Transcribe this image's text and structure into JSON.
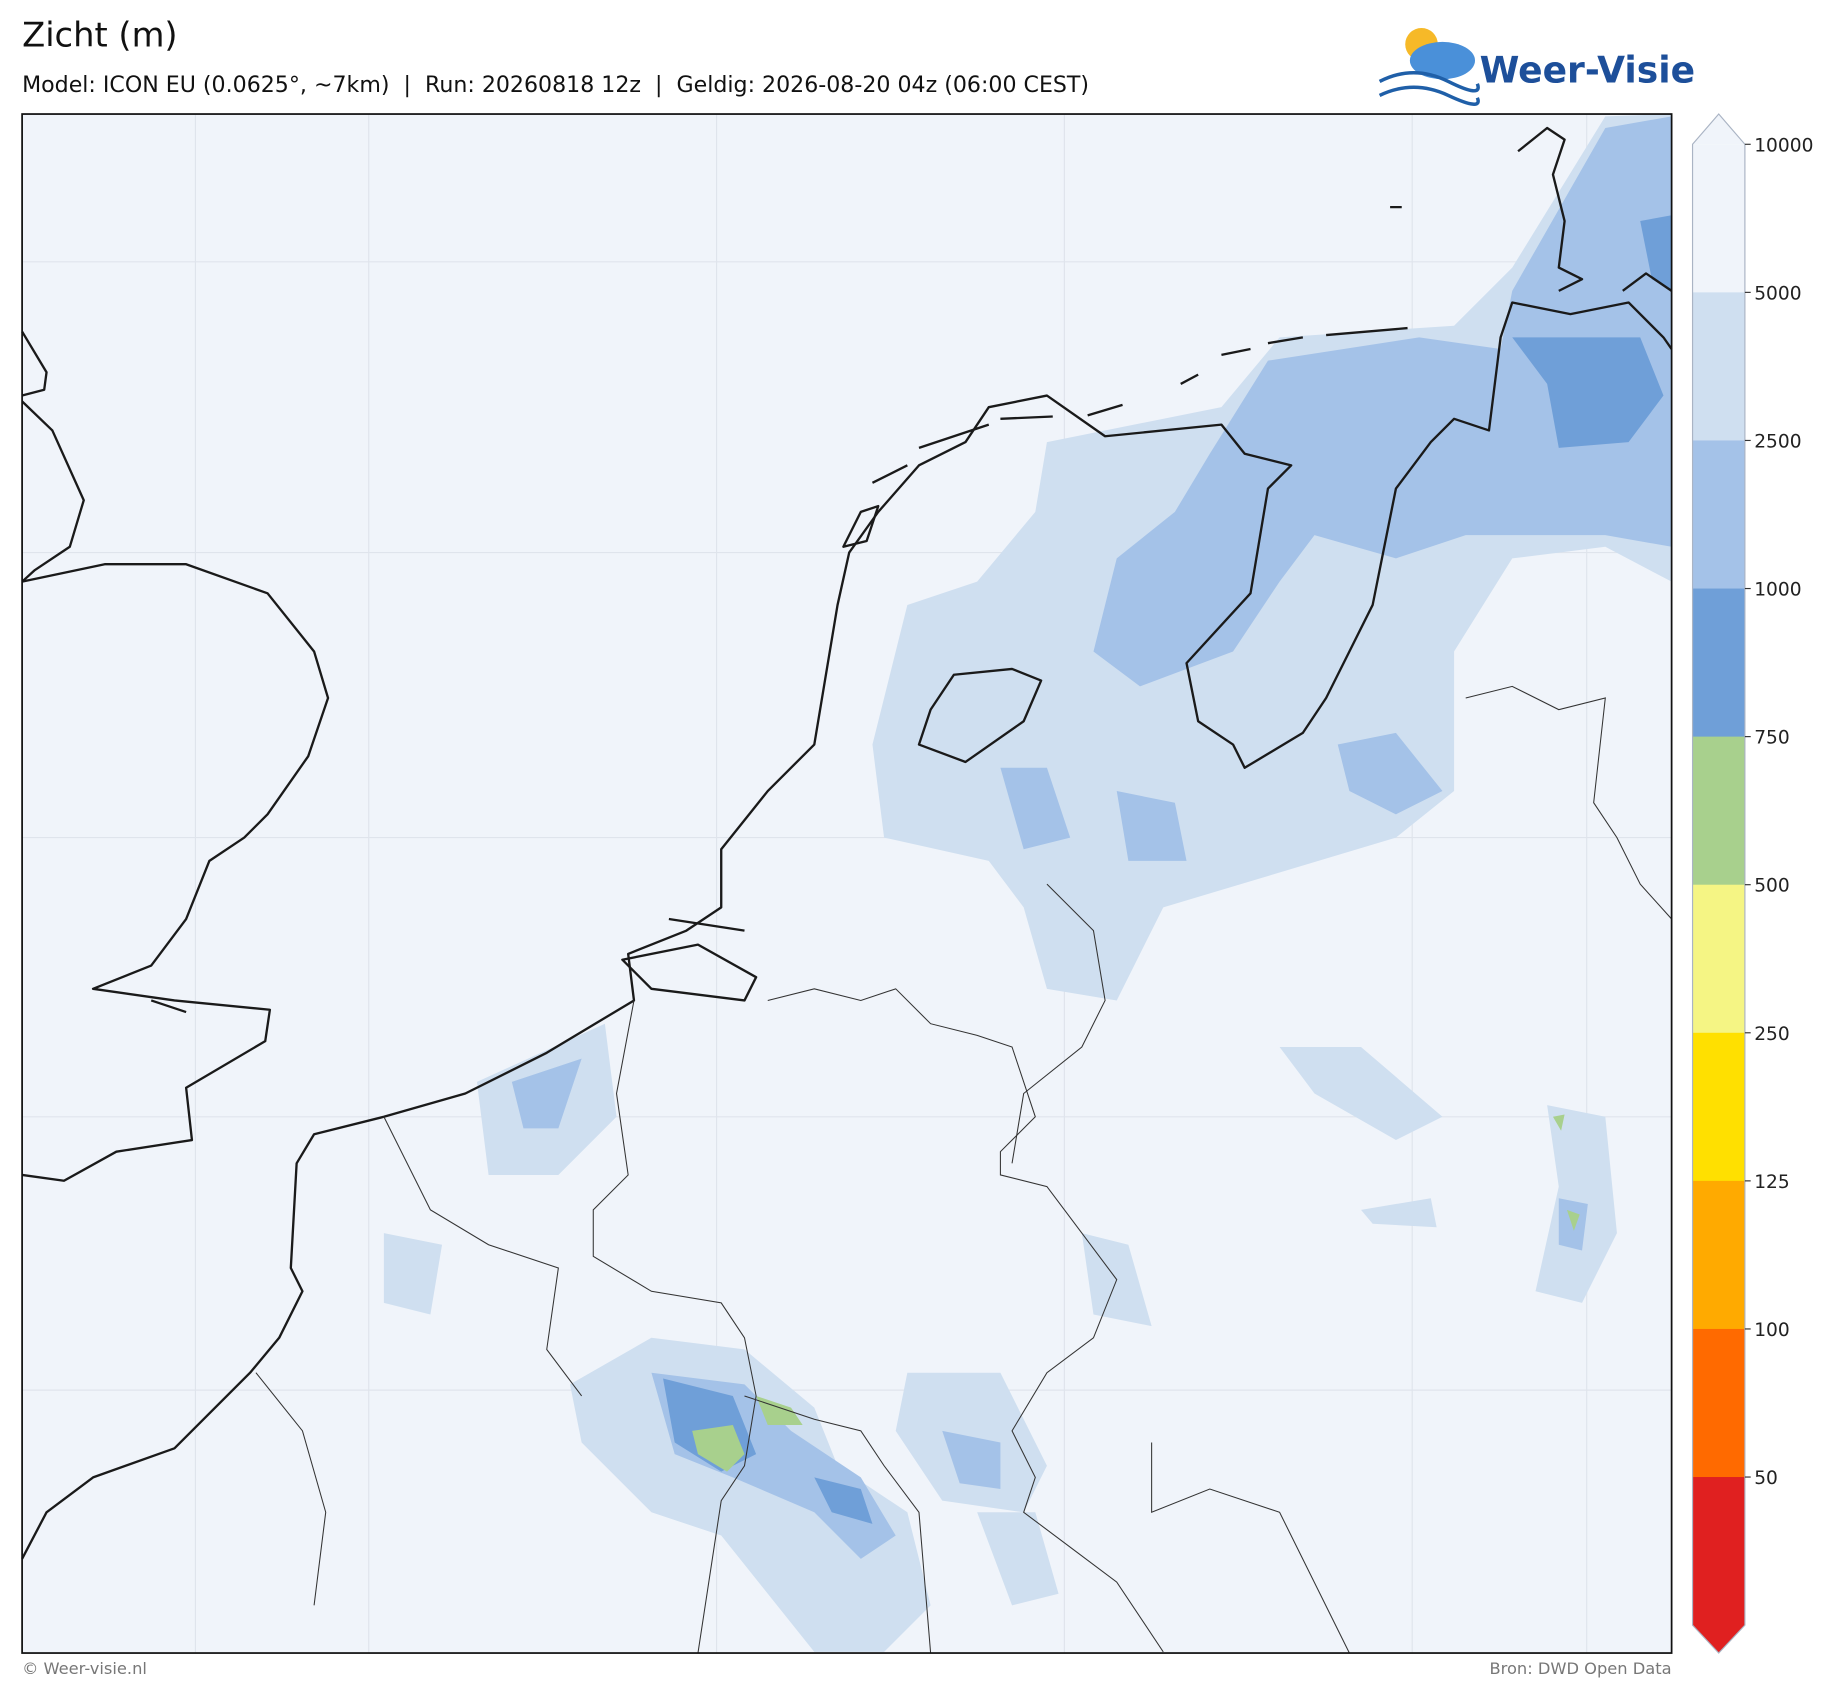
{
  "header": {
    "title": "Zicht (m)",
    "subtitle": "Model: ICON EU (0.0625°, ~7km)  |  Run: 20260818 12z  |  Geldig: 2026-08-20 04z (06:00 CEST)",
    "logo": "Weer-Visie"
  },
  "colorbar": {
    "ticks": [
      10000,
      5000,
      2500,
      1000,
      750,
      500,
      250,
      125,
      100,
      50
    ],
    "colors": [
      "#f0f4fa",
      "#f0f4fa",
      "#cfdff0",
      "#a4c2e8",
      "#6f9fd8",
      "#a8d08d",
      "#f5f584",
      "#ffe000",
      "#ffaa00",
      "#ff6a00",
      "#e02020"
    ]
  },
  "footer": {
    "left": "© Weer-visie.nl",
    "right": "Bron: DWD Open Data"
  }
}
